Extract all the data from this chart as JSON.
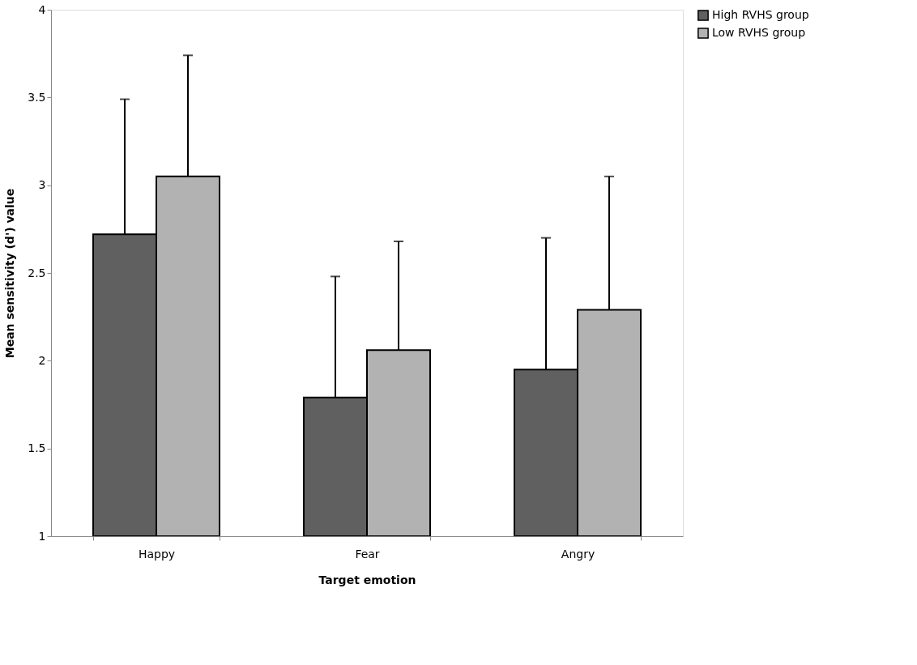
{
  "chart_data": {
    "type": "bar",
    "xlabel": "Target emotion",
    "ylabel": "Mean sensitivity (d')  value",
    "categories": [
      "Happy",
      "Fear",
      "Angry"
    ],
    "series": [
      {
        "name": "High RVHS group",
        "color": "#606060",
        "values": [
          2.72,
          1.79,
          1.95
        ],
        "errors": [
          [
            2.72,
            3.49
          ],
          [
            1.79,
            2.48
          ],
          [
            1.95,
            2.7
          ]
        ]
      },
      {
        "name": "Low RVHS group",
        "color": "#b2b2b2",
        "values": [
          3.05,
          2.06,
          2.29
        ],
        "errors": [
          [
            3.05,
            3.74
          ],
          [
            2.06,
            2.68
          ],
          [
            2.29,
            3.05
          ]
        ]
      }
    ],
    "ylim": [
      1,
      4
    ],
    "yticks": [
      1,
      1.5,
      2,
      2.5,
      3,
      3.5,
      4
    ],
    "grid": false,
    "legend": "right"
  }
}
